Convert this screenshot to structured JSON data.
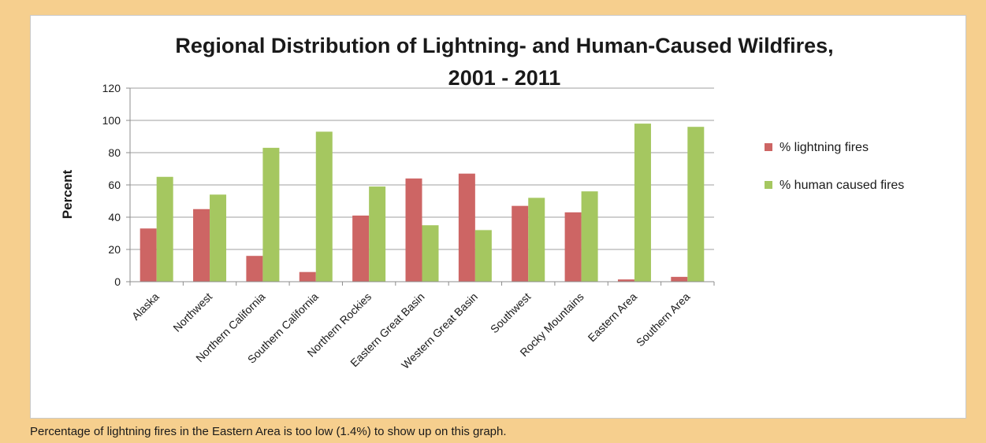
{
  "caption": "Percentage of lightning fires in the Eastern Area is too low (1.4%) to show up on this graph.",
  "colors": {
    "lightning": "#cd6564",
    "human": "#a5c760",
    "grid": "#9f9f9f",
    "axis": "#8c8c8c",
    "text": "#1a1a1a",
    "background": "#f6cf8e"
  },
  "chart_data": {
    "type": "bar",
    "title": "Regional Distribution of Lightning- and Human-Caused Wildfires, 2001 - 2011",
    "title_lines": [
      "Regional Distribution of Lightning- and Human-Caused Wildfires,",
      "2001 - 2011"
    ],
    "xlabel": "",
    "ylabel": "Percent",
    "ylim": [
      0,
      120
    ],
    "yticks": [
      0,
      20,
      40,
      60,
      80,
      100,
      120
    ],
    "grid": true,
    "legend_position": "right",
    "categories": [
      "Alaska",
      "Northwest",
      "Northern California",
      "Southern California",
      "Northern Rockies",
      "Eastern Great Basin",
      "Western Great Basin",
      "Southwest",
      "Rocky Mountains",
      "Eastern Area",
      "Southern Area"
    ],
    "series": [
      {
        "name": "% lightning fires",
        "values": [
          33,
          45,
          16,
          6,
          41,
          64,
          67,
          47,
          43,
          1.4,
          3
        ]
      },
      {
        "name": "% human caused fires",
        "values": [
          65,
          54,
          83,
          93,
          59,
          35,
          32,
          52,
          56,
          98,
          96
        ]
      }
    ]
  }
}
